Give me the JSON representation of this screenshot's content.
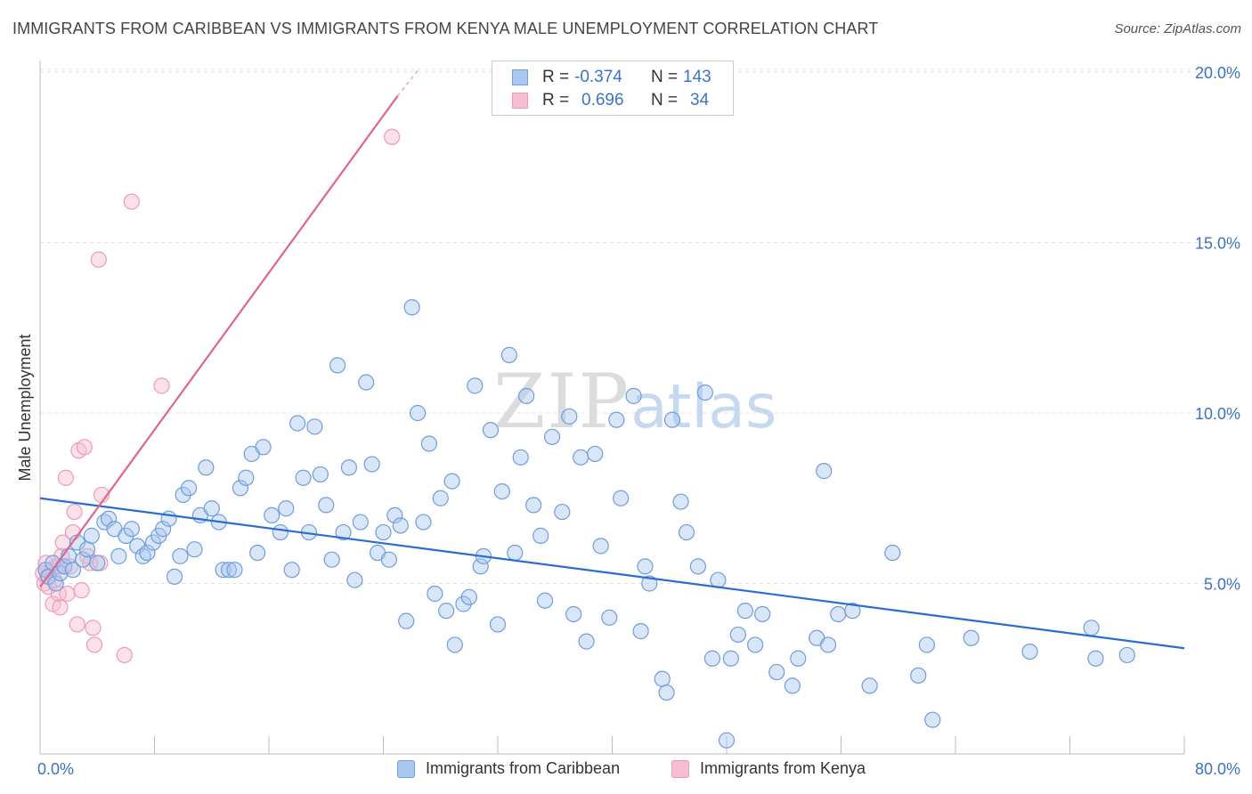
{
  "title": "IMMIGRANTS FROM CARIBBEAN VS IMMIGRANTS FROM KENYA MALE UNEMPLOYMENT CORRELATION CHART",
  "source": "Source: ZipAtlas.com",
  "watermark": {
    "zip": "ZIP",
    "atlas": "atlas"
  },
  "legend": {
    "rows": [
      {
        "r_label": "R =",
        "r_value": "-0.374",
        "n_label": "N =",
        "n_value": "143"
      },
      {
        "r_label": "R =",
        "r_value": "0.696",
        "n_label": "N =",
        "n_value": "34"
      }
    ]
  },
  "bottom_legend": [
    "Immigrants from Caribbean",
    "Immigrants from Kenya"
  ],
  "colors": {
    "caribbean_fill": "#a9c7ef",
    "caribbean_stroke": "#6f9ddd",
    "caribbean_line": "#2a6dd0",
    "kenya_fill": "#f6bfd0",
    "kenya_stroke": "#ee9ab5",
    "kenya_line": "#e0658e",
    "tick_label": "#3b73c8",
    "grid": "#e2e2e2"
  },
  "chart_data": {
    "type": "scatter",
    "title": "IMMIGRANTS FROM CARIBBEAN VS IMMIGRANTS FROM KENYA MALE UNEMPLOYMENT CORRELATION CHART",
    "xlabel": "",
    "ylabel": "Male Unemployment",
    "xlim": [
      0,
      80
    ],
    "ylim": [
      0,
      20.5
    ],
    "x_tick_labels": [
      "0.0%",
      "80.0%"
    ],
    "y_tick_labels": [
      "5.0%",
      "10.0%",
      "15.0%",
      "20.0%"
    ],
    "y_ticks": [
      5,
      10,
      15,
      20
    ],
    "grid": "horizontal dashed",
    "legend_placement": "top-center and bottom",
    "series": [
      {
        "name": "Immigrants from Caribbean",
        "r": -0.374,
        "n": 143,
        "trend": {
          "x": [
            0,
            80
          ],
          "y": [
            7.5,
            3.1
          ]
        },
        "points": [
          [
            0.4,
            5.4
          ],
          [
            0.6,
            5.2
          ],
          [
            0.9,
            5.6
          ],
          [
            1.1,
            5.0
          ],
          [
            1.4,
            5.3
          ],
          [
            1.7,
            5.5
          ],
          [
            2.0,
            5.8
          ],
          [
            2.3,
            5.4
          ],
          [
            2.6,
            6.2
          ],
          [
            3.0,
            5.7
          ],
          [
            3.3,
            6.0
          ],
          [
            3.6,
            6.4
          ],
          [
            4.0,
            5.6
          ],
          [
            4.5,
            6.8
          ],
          [
            4.8,
            6.9
          ],
          [
            5.2,
            6.6
          ],
          [
            5.5,
            5.8
          ],
          [
            6.0,
            6.4
          ],
          [
            6.4,
            6.6
          ],
          [
            6.8,
            6.1
          ],
          [
            7.2,
            5.8
          ],
          [
            7.5,
            5.9
          ],
          [
            7.9,
            6.2
          ],
          [
            8.3,
            6.4
          ],
          [
            8.6,
            6.6
          ],
          [
            9.0,
            6.9
          ],
          [
            9.4,
            5.2
          ],
          [
            9.8,
            5.8
          ],
          [
            10.0,
            7.6
          ],
          [
            10.4,
            7.8
          ],
          [
            10.8,
            6.0
          ],
          [
            11.2,
            7.0
          ],
          [
            11.6,
            8.4
          ],
          [
            12.0,
            7.2
          ],
          [
            12.5,
            6.8
          ],
          [
            12.8,
            5.4
          ],
          [
            13.2,
            5.4
          ],
          [
            13.6,
            5.4
          ],
          [
            14.0,
            7.8
          ],
          [
            14.4,
            8.1
          ],
          [
            14.8,
            8.8
          ],
          [
            15.2,
            5.9
          ],
          [
            15.6,
            9.0
          ],
          [
            16.2,
            7.0
          ],
          [
            16.8,
            6.5
          ],
          [
            17.2,
            7.2
          ],
          [
            17.6,
            5.4
          ],
          [
            18.0,
            9.7
          ],
          [
            18.4,
            8.1
          ],
          [
            18.8,
            6.5
          ],
          [
            19.2,
            9.6
          ],
          [
            19.6,
            8.2
          ],
          [
            20.0,
            7.3
          ],
          [
            20.4,
            5.7
          ],
          [
            20.8,
            11.4
          ],
          [
            21.2,
            6.5
          ],
          [
            21.6,
            8.4
          ],
          [
            22.0,
            5.1
          ],
          [
            22.4,
            6.8
          ],
          [
            22.8,
            10.9
          ],
          [
            23.2,
            8.5
          ],
          [
            23.6,
            5.9
          ],
          [
            24.0,
            6.5
          ],
          [
            24.4,
            5.7
          ],
          [
            24.8,
            7.0
          ],
          [
            25.2,
            6.7
          ],
          [
            25.6,
            3.9
          ],
          [
            26.0,
            13.1
          ],
          [
            26.4,
            10.0
          ],
          [
            26.8,
            6.8
          ],
          [
            27.2,
            9.1
          ],
          [
            27.6,
            4.7
          ],
          [
            28.0,
            7.5
          ],
          [
            28.4,
            4.2
          ],
          [
            28.8,
            8.0
          ],
          [
            29.0,
            3.2
          ],
          [
            29.6,
            4.4
          ],
          [
            30.0,
            4.6
          ],
          [
            30.4,
            10.8
          ],
          [
            30.8,
            5.5
          ],
          [
            31.0,
            5.8
          ],
          [
            31.5,
            9.5
          ],
          [
            32.0,
            3.8
          ],
          [
            32.3,
            7.7
          ],
          [
            32.8,
            11.7
          ],
          [
            33.2,
            5.9
          ],
          [
            33.6,
            8.7
          ],
          [
            34.0,
            10.5
          ],
          [
            34.5,
            7.3
          ],
          [
            35.0,
            6.4
          ],
          [
            35.3,
            4.5
          ],
          [
            35.8,
            9.3
          ],
          [
            36.5,
            7.1
          ],
          [
            37.0,
            9.9
          ],
          [
            37.3,
            4.1
          ],
          [
            37.8,
            8.7
          ],
          [
            38.2,
            3.3
          ],
          [
            38.8,
            8.8
          ],
          [
            39.2,
            6.1
          ],
          [
            39.8,
            4.0
          ],
          [
            40.3,
            9.8
          ],
          [
            40.6,
            7.5
          ],
          [
            41.5,
            10.5
          ],
          [
            42.0,
            3.6
          ],
          [
            42.3,
            5.5
          ],
          [
            42.6,
            5.0
          ],
          [
            43.5,
            2.2
          ],
          [
            43.8,
            1.8
          ],
          [
            44.2,
            9.8
          ],
          [
            44.8,
            7.4
          ],
          [
            45.2,
            6.5
          ],
          [
            46.0,
            5.5
          ],
          [
            46.5,
            10.6
          ],
          [
            47.0,
            2.8
          ],
          [
            47.4,
            5.1
          ],
          [
            48.0,
            0.4
          ],
          [
            48.3,
            2.8
          ],
          [
            48.8,
            3.5
          ],
          [
            49.3,
            4.2
          ],
          [
            50.0,
            3.2
          ],
          [
            50.5,
            4.1
          ],
          [
            51.5,
            2.4
          ],
          [
            52.6,
            2.0
          ],
          [
            53.0,
            2.8
          ],
          [
            54.3,
            3.4
          ],
          [
            54.8,
            8.3
          ],
          [
            55.1,
            3.2
          ],
          [
            55.8,
            4.1
          ],
          [
            56.8,
            4.2
          ],
          [
            58.0,
            2.0
          ],
          [
            59.6,
            5.9
          ],
          [
            61.4,
            2.3
          ],
          [
            62.0,
            3.2
          ],
          [
            62.4,
            1.0
          ],
          [
            65.1,
            3.4
          ],
          [
            69.2,
            3.0
          ],
          [
            73.5,
            3.7
          ],
          [
            73.8,
            2.8
          ],
          [
            76.0,
            2.9
          ]
        ]
      },
      {
        "name": "Immigrants from Kenya",
        "r": 0.696,
        "n": 34,
        "trend": {
          "x": [
            0,
            25
          ],
          "y": [
            4.9,
            19.3
          ]
        },
        "trend_dashed": {
          "x": [
            25,
            26.5
          ],
          "y": [
            19.3,
            20.1
          ]
        },
        "points": [
          [
            0.2,
            5.3
          ],
          [
            0.3,
            5.0
          ],
          [
            0.4,
            5.6
          ],
          [
            0.5,
            5.2
          ],
          [
            0.6,
            4.9
          ],
          [
            0.8,
            5.4
          ],
          [
            0.9,
            4.4
          ],
          [
            1.0,
            5.1
          ],
          [
            1.2,
            5.5
          ],
          [
            1.3,
            4.7
          ],
          [
            1.4,
            4.3
          ],
          [
            1.5,
            5.8
          ],
          [
            1.6,
            6.2
          ],
          [
            1.7,
            5.5
          ],
          [
            1.8,
            8.1
          ],
          [
            1.9,
            4.7
          ],
          [
            2.1,
            5.5
          ],
          [
            2.3,
            6.5
          ],
          [
            2.4,
            7.1
          ],
          [
            2.6,
            3.8
          ],
          [
            2.7,
            8.9
          ],
          [
            2.9,
            4.8
          ],
          [
            3.1,
            9.0
          ],
          [
            3.3,
            5.8
          ],
          [
            3.5,
            5.6
          ],
          [
            3.7,
            3.7
          ],
          [
            3.8,
            3.2
          ],
          [
            4.2,
            5.6
          ],
          [
            4.3,
            7.6
          ],
          [
            5.9,
            2.9
          ],
          [
            6.4,
            16.2
          ],
          [
            4.1,
            14.5
          ],
          [
            8.5,
            10.8
          ],
          [
            24.6,
            18.1
          ]
        ]
      }
    ]
  }
}
